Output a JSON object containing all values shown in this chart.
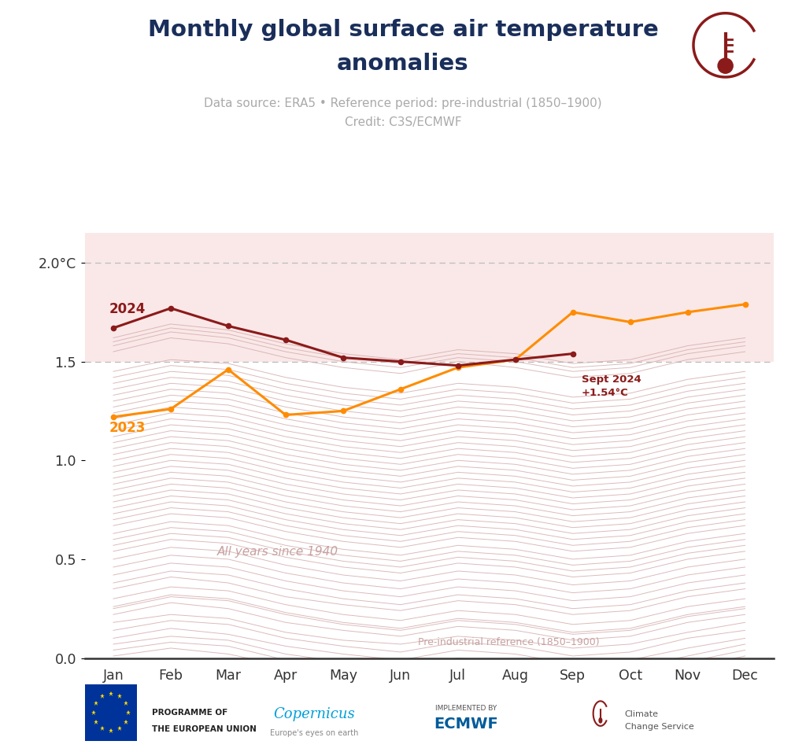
{
  "title_line1": "Monthly global surface air temperature",
  "title_line2": "anomalies",
  "subtitle_line1": "Data source: ERA5 • Reference period: pre-industrial (1850–1900)",
  "subtitle_line2": "Credit: C3S/ECMWF",
  "months": [
    "Jan",
    "Feb",
    "Mar",
    "Apr",
    "May",
    "Jun",
    "Jul",
    "Aug",
    "Sep",
    "Oct",
    "Nov",
    "Dec"
  ],
  "data_2024": [
    1.67,
    1.77,
    1.68,
    1.61,
    1.52,
    1.5,
    1.48,
    1.51,
    1.54,
    null,
    null,
    null
  ],
  "data_2023": [
    1.22,
    1.26,
    1.46,
    1.23,
    1.25,
    1.36,
    1.47,
    1.51,
    1.75,
    1.7,
    1.75,
    1.79
  ],
  "color_2024": "#8B1A1A",
  "color_2023": "#FF8C00",
  "ylim": [
    0.0,
    2.15
  ],
  "yticks": [
    0.0,
    0.5,
    1.0,
    1.5,
    2.0
  ],
  "ytick_labels": [
    "0.0",
    "0.5",
    "1.0",
    "1.5",
    "2.0°C"
  ],
  "shading_color": "#FAE8E8",
  "background_color": "#FFFFFF",
  "all_years_color": "#D4AAAA",
  "all_years_label": "All years since 1940",
  "preindustrial_label": "Pre-industrial reference (1850–1900)",
  "title_color": "#1a2e5a",
  "subtitle_color": "#AAAAAA",
  "all_years_data": [
    [
      0.18,
      0.22,
      0.2,
      0.13,
      0.09,
      0.07,
      0.11,
      0.09,
      0.05,
      0.07,
      0.13,
      0.18
    ],
    [
      0.22,
      0.28,
      0.25,
      0.18,
      0.14,
      0.11,
      0.16,
      0.14,
      0.09,
      0.11,
      0.18,
      0.22
    ],
    [
      0.3,
      0.36,
      0.34,
      0.27,
      0.22,
      0.19,
      0.24,
      0.22,
      0.17,
      0.19,
      0.26,
      0.3
    ],
    [
      0.35,
      0.41,
      0.38,
      0.31,
      0.27,
      0.24,
      0.29,
      0.27,
      0.22,
      0.24,
      0.31,
      0.35
    ],
    [
      0.38,
      0.44,
      0.42,
      0.35,
      0.3,
      0.27,
      0.32,
      0.3,
      0.25,
      0.27,
      0.34,
      0.38
    ],
    [
      0.42,
      0.48,
      0.46,
      0.39,
      0.34,
      0.31,
      0.36,
      0.34,
      0.29,
      0.31,
      0.38,
      0.42
    ],
    [
      0.46,
      0.52,
      0.5,
      0.43,
      0.38,
      0.35,
      0.4,
      0.38,
      0.33,
      0.35,
      0.42,
      0.46
    ],
    [
      0.5,
      0.56,
      0.54,
      0.47,
      0.42,
      0.39,
      0.44,
      0.42,
      0.37,
      0.39,
      0.46,
      0.5
    ],
    [
      0.54,
      0.6,
      0.58,
      0.51,
      0.46,
      0.43,
      0.48,
      0.46,
      0.41,
      0.43,
      0.5,
      0.54
    ],
    [
      0.57,
      0.63,
      0.61,
      0.54,
      0.49,
      0.46,
      0.51,
      0.49,
      0.44,
      0.46,
      0.53,
      0.57
    ],
    [
      0.6,
      0.66,
      0.64,
      0.57,
      0.52,
      0.49,
      0.54,
      0.52,
      0.47,
      0.49,
      0.56,
      0.6
    ],
    [
      0.63,
      0.69,
      0.67,
      0.6,
      0.55,
      0.52,
      0.57,
      0.55,
      0.5,
      0.52,
      0.59,
      0.63
    ],
    [
      0.67,
      0.73,
      0.71,
      0.64,
      0.59,
      0.56,
      0.61,
      0.59,
      0.54,
      0.56,
      0.63,
      0.67
    ],
    [
      0.7,
      0.76,
      0.74,
      0.67,
      0.62,
      0.59,
      0.64,
      0.62,
      0.57,
      0.59,
      0.66,
      0.7
    ],
    [
      0.73,
      0.79,
      0.77,
      0.7,
      0.65,
      0.62,
      0.67,
      0.65,
      0.6,
      0.62,
      0.69,
      0.73
    ],
    [
      0.76,
      0.82,
      0.8,
      0.73,
      0.68,
      0.65,
      0.7,
      0.68,
      0.63,
      0.65,
      0.72,
      0.76
    ],
    [
      0.79,
      0.85,
      0.83,
      0.76,
      0.71,
      0.68,
      0.73,
      0.71,
      0.66,
      0.68,
      0.75,
      0.79
    ],
    [
      0.82,
      0.88,
      0.86,
      0.79,
      0.74,
      0.71,
      0.76,
      0.74,
      0.69,
      0.71,
      0.78,
      0.82
    ],
    [
      0.85,
      0.91,
      0.89,
      0.82,
      0.77,
      0.74,
      0.79,
      0.77,
      0.72,
      0.74,
      0.81,
      0.85
    ],
    [
      0.88,
      0.94,
      0.92,
      0.85,
      0.8,
      0.77,
      0.82,
      0.8,
      0.75,
      0.77,
      0.84,
      0.88
    ],
    [
      0.91,
      0.97,
      0.95,
      0.88,
      0.83,
      0.8,
      0.85,
      0.83,
      0.78,
      0.8,
      0.87,
      0.91
    ],
    [
      0.94,
      1.0,
      0.98,
      0.91,
      0.86,
      0.83,
      0.88,
      0.86,
      0.81,
      0.83,
      0.9,
      0.94
    ],
    [
      0.97,
      1.03,
      1.01,
      0.94,
      0.89,
      0.86,
      0.91,
      0.89,
      0.84,
      0.86,
      0.93,
      0.97
    ],
    [
      1.0,
      1.06,
      1.04,
      0.97,
      0.92,
      0.89,
      0.94,
      0.92,
      0.87,
      0.89,
      0.96,
      1.0
    ],
    [
      1.03,
      1.09,
      1.07,
      1.0,
      0.95,
      0.92,
      0.97,
      0.95,
      0.9,
      0.92,
      0.99,
      1.03
    ],
    [
      1.06,
      1.12,
      1.1,
      1.03,
      0.98,
      0.95,
      1.0,
      0.98,
      0.93,
      0.95,
      1.02,
      1.06
    ],
    [
      1.09,
      1.15,
      1.13,
      1.06,
      1.01,
      0.98,
      1.03,
      1.01,
      0.96,
      0.98,
      1.05,
      1.09
    ],
    [
      1.12,
      1.18,
      1.16,
      1.09,
      1.04,
      1.01,
      1.06,
      1.04,
      0.99,
      1.01,
      1.08,
      1.12
    ],
    [
      1.15,
      1.21,
      1.19,
      1.12,
      1.07,
      1.04,
      1.09,
      1.07,
      1.02,
      1.04,
      1.11,
      1.15
    ],
    [
      1.18,
      1.24,
      1.22,
      1.15,
      1.1,
      1.07,
      1.12,
      1.1,
      1.05,
      1.07,
      1.14,
      1.18
    ],
    [
      1.21,
      1.27,
      1.25,
      1.18,
      1.13,
      1.1,
      1.15,
      1.13,
      1.08,
      1.1,
      1.17,
      1.21
    ],
    [
      1.24,
      1.3,
      1.28,
      1.21,
      1.16,
      1.13,
      1.18,
      1.16,
      1.11,
      1.13,
      1.2,
      1.24
    ],
    [
      1.27,
      1.33,
      1.31,
      1.24,
      1.19,
      1.16,
      1.21,
      1.19,
      1.14,
      1.16,
      1.23,
      1.27
    ],
    [
      1.3,
      1.36,
      1.34,
      1.27,
      1.22,
      1.19,
      1.24,
      1.22,
      1.17,
      1.19,
      1.26,
      1.3
    ],
    [
      1.33,
      1.39,
      1.37,
      1.3,
      1.25,
      1.22,
      1.27,
      1.25,
      1.2,
      1.22,
      1.29,
      1.33
    ],
    [
      1.36,
      1.42,
      1.4,
      1.33,
      1.28,
      1.25,
      1.3,
      1.28,
      1.23,
      1.25,
      1.32,
      1.36
    ],
    [
      1.39,
      1.45,
      1.43,
      1.36,
      1.31,
      1.28,
      1.33,
      1.31,
      1.26,
      1.28,
      1.35,
      1.39
    ],
    [
      1.42,
      1.48,
      1.46,
      1.39,
      1.34,
      1.31,
      1.36,
      1.34,
      1.29,
      1.31,
      1.38,
      1.42
    ],
    [
      1.45,
      1.51,
      1.49,
      1.42,
      1.37,
      1.34,
      1.39,
      1.37,
      1.32,
      1.34,
      1.41,
      1.45
    ],
    [
      0.1,
      0.15,
      0.12,
      0.06,
      0.02,
      -0.01,
      0.04,
      0.02,
      -0.03,
      -0.01,
      0.05,
      0.1
    ],
    [
      0.07,
      0.11,
      0.09,
      0.02,
      -0.02,
      -0.05,
      0.0,
      -0.02,
      -0.07,
      -0.05,
      0.01,
      0.07
    ],
    [
      0.14,
      0.19,
      0.17,
      0.1,
      0.06,
      0.03,
      0.08,
      0.06,
      0.01,
      0.03,
      0.1,
      0.14
    ],
    [
      0.25,
      0.31,
      0.29,
      0.22,
      0.17,
      0.14,
      0.19,
      0.17,
      0.12,
      0.14,
      0.21,
      0.25
    ],
    [
      0.26,
      0.32,
      0.3,
      0.23,
      0.18,
      0.15,
      0.2,
      0.18,
      0.13,
      0.15,
      0.22,
      0.26
    ],
    [
      1.55,
      1.62,
      1.59,
      1.52,
      1.47,
      1.44,
      1.5,
      1.47,
      1.42,
      1.44,
      1.51,
      1.55
    ],
    [
      1.58,
      1.65,
      1.62,
      1.55,
      1.5,
      1.47,
      1.52,
      1.5,
      1.45,
      1.47,
      1.54,
      1.58
    ],
    [
      0.04,
      0.08,
      0.06,
      -0.01,
      -0.05,
      -0.08,
      -0.03,
      -0.05,
      -0.1,
      -0.08,
      -0.02,
      0.04
    ],
    [
      0.01,
      0.05,
      0.02,
      -0.04,
      -0.08,
      -0.11,
      -0.06,
      -0.08,
      -0.13,
      -0.11,
      -0.05,
      0.01
    ],
    [
      1.6,
      1.67,
      1.64,
      1.57,
      1.52,
      1.49,
      1.54,
      1.52,
      1.47,
      1.49,
      1.56,
      1.6
    ],
    [
      1.62,
      1.69,
      1.66,
      1.59,
      1.54,
      1.51,
      1.56,
      1.54,
      1.49,
      1.51,
      1.58,
      1.62
    ]
  ]
}
